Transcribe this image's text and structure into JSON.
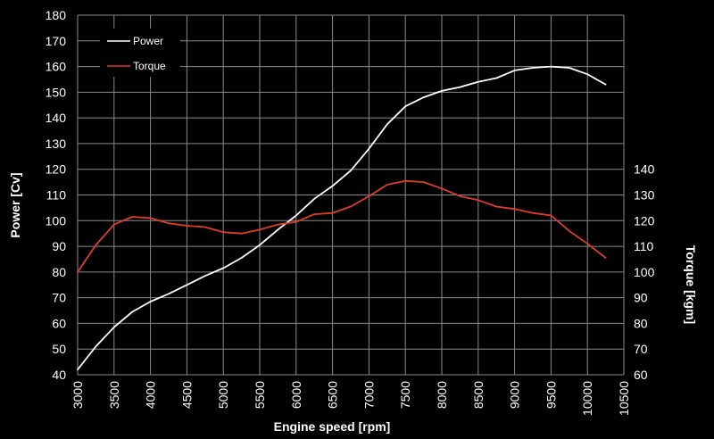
{
  "chart_data": {
    "type": "line",
    "title": "",
    "xlabel": "Engine speed  [rpm]",
    "ylabel_left": "Power [Cv]",
    "ylabel_right": "Torque [kgm]",
    "xlim": [
      3000,
      10500
    ],
    "x_ticks": [
      3000,
      3500,
      4000,
      4500,
      5000,
      5500,
      6000,
      6500,
      7000,
      7500,
      8000,
      8500,
      9000,
      9500,
      10000,
      10500
    ],
    "ylim_left": [
      40,
      180
    ],
    "y_ticks_left": [
      40,
      50,
      60,
      70,
      80,
      90,
      100,
      110,
      120,
      130,
      140,
      150,
      160,
      170,
      180
    ],
    "ylim_right": [
      60,
      200
    ],
    "y_ticks_right": [
      60,
      70,
      80,
      90,
      100,
      110,
      120,
      130,
      140
    ],
    "grid": true,
    "legend_position": "top-left",
    "series": [
      {
        "name": "Power",
        "axis": "left",
        "color": "#ffffff",
        "points": [
          [
            3000,
            42
          ],
          [
            3250,
            51
          ],
          [
            3500,
            58.5
          ],
          [
            3750,
            64.5
          ],
          [
            4000,
            68.5
          ],
          [
            4250,
            71.5
          ],
          [
            4500,
            75
          ],
          [
            4750,
            78.5
          ],
          [
            5000,
            81.5
          ],
          [
            5250,
            85.5
          ],
          [
            5500,
            90.5
          ],
          [
            5750,
            96.5
          ],
          [
            6000,
            102
          ],
          [
            6250,
            108.5
          ],
          [
            6500,
            113.5
          ],
          [
            6750,
            119.5
          ],
          [
            7000,
            128
          ],
          [
            7250,
            137.5
          ],
          [
            7500,
            144.5
          ],
          [
            7750,
            148
          ],
          [
            8000,
            150.5
          ],
          [
            8250,
            152
          ],
          [
            8500,
            154
          ],
          [
            8750,
            155.5
          ],
          [
            9000,
            158.5
          ],
          [
            9250,
            159.5
          ],
          [
            9500,
            160
          ],
          [
            9750,
            159.5
          ],
          [
            10000,
            157
          ],
          [
            10250,
            153
          ]
        ]
      },
      {
        "name": "Torque",
        "axis": "right",
        "color": "#e03c2a",
        "points": [
          [
            3000,
            100
          ],
          [
            3250,
            110.5
          ],
          [
            3500,
            118.5
          ],
          [
            3750,
            121.5
          ],
          [
            4000,
            121
          ],
          [
            4250,
            119
          ],
          [
            4500,
            118
          ],
          [
            4750,
            117.5
          ],
          [
            5000,
            115.5
          ],
          [
            5250,
            115
          ],
          [
            5500,
            116.5
          ],
          [
            5750,
            118.5
          ],
          [
            6000,
            119.5
          ],
          [
            6250,
            122.5
          ],
          [
            6500,
            123
          ],
          [
            6750,
            125.5
          ],
          [
            7000,
            129.5
          ],
          [
            7250,
            134
          ],
          [
            7500,
            135.5
          ],
          [
            7750,
            135
          ],
          [
            8000,
            132.5
          ],
          [
            8250,
            129.5
          ],
          [
            8500,
            128
          ],
          [
            8750,
            125.5
          ],
          [
            9000,
            124.5
          ],
          [
            9250,
            123
          ],
          [
            9500,
            122
          ],
          [
            9750,
            116
          ],
          [
            10000,
            111
          ],
          [
            10250,
            105.5
          ]
        ]
      }
    ]
  }
}
